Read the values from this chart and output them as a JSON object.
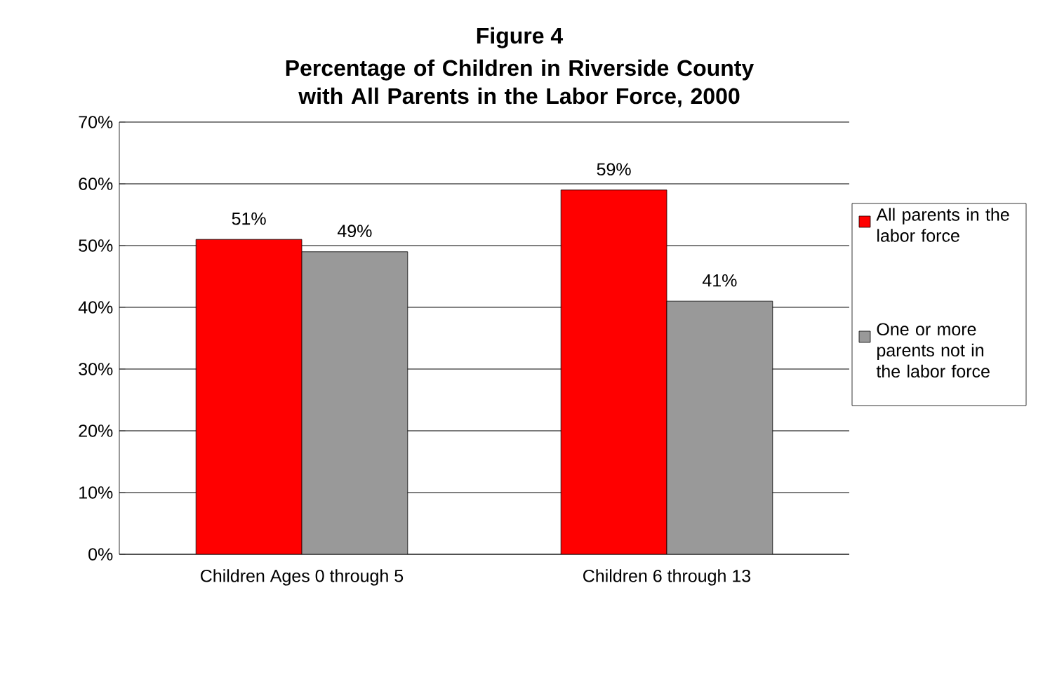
{
  "chart_data": {
    "type": "bar",
    "title": "Figure 4",
    "subtitle": "Percentage of Children in Riverside County with All Parents in the Labor Force, 2000",
    "categories": [
      "Children Ages 0 through 5",
      "Children 6 through 13"
    ],
    "series": [
      {
        "name": "All parents in the labor force",
        "color": "#ff0000",
        "values": [
          51,
          59
        ],
        "value_labels": [
          "51%",
          "59%"
        ]
      },
      {
        "name": "One or more parents not in the labor force",
        "color": "#999999",
        "values": [
          49,
          41
        ],
        "value_labels": [
          "49%",
          "41%"
        ]
      }
    ],
    "ylim": [
      0,
      70
    ],
    "yticks": [
      {
        "value": 0,
        "label": "0%"
      },
      {
        "value": 10,
        "label": "10%"
      },
      {
        "value": 20,
        "label": "20%"
      },
      {
        "value": 30,
        "label": "30%"
      },
      {
        "value": 40,
        "label": "40%"
      },
      {
        "value": 50,
        "label": "50%"
      },
      {
        "value": 60,
        "label": "60%"
      },
      {
        "value": 70,
        "label": "70%"
      }
    ],
    "grid": "y",
    "legend": "right"
  }
}
